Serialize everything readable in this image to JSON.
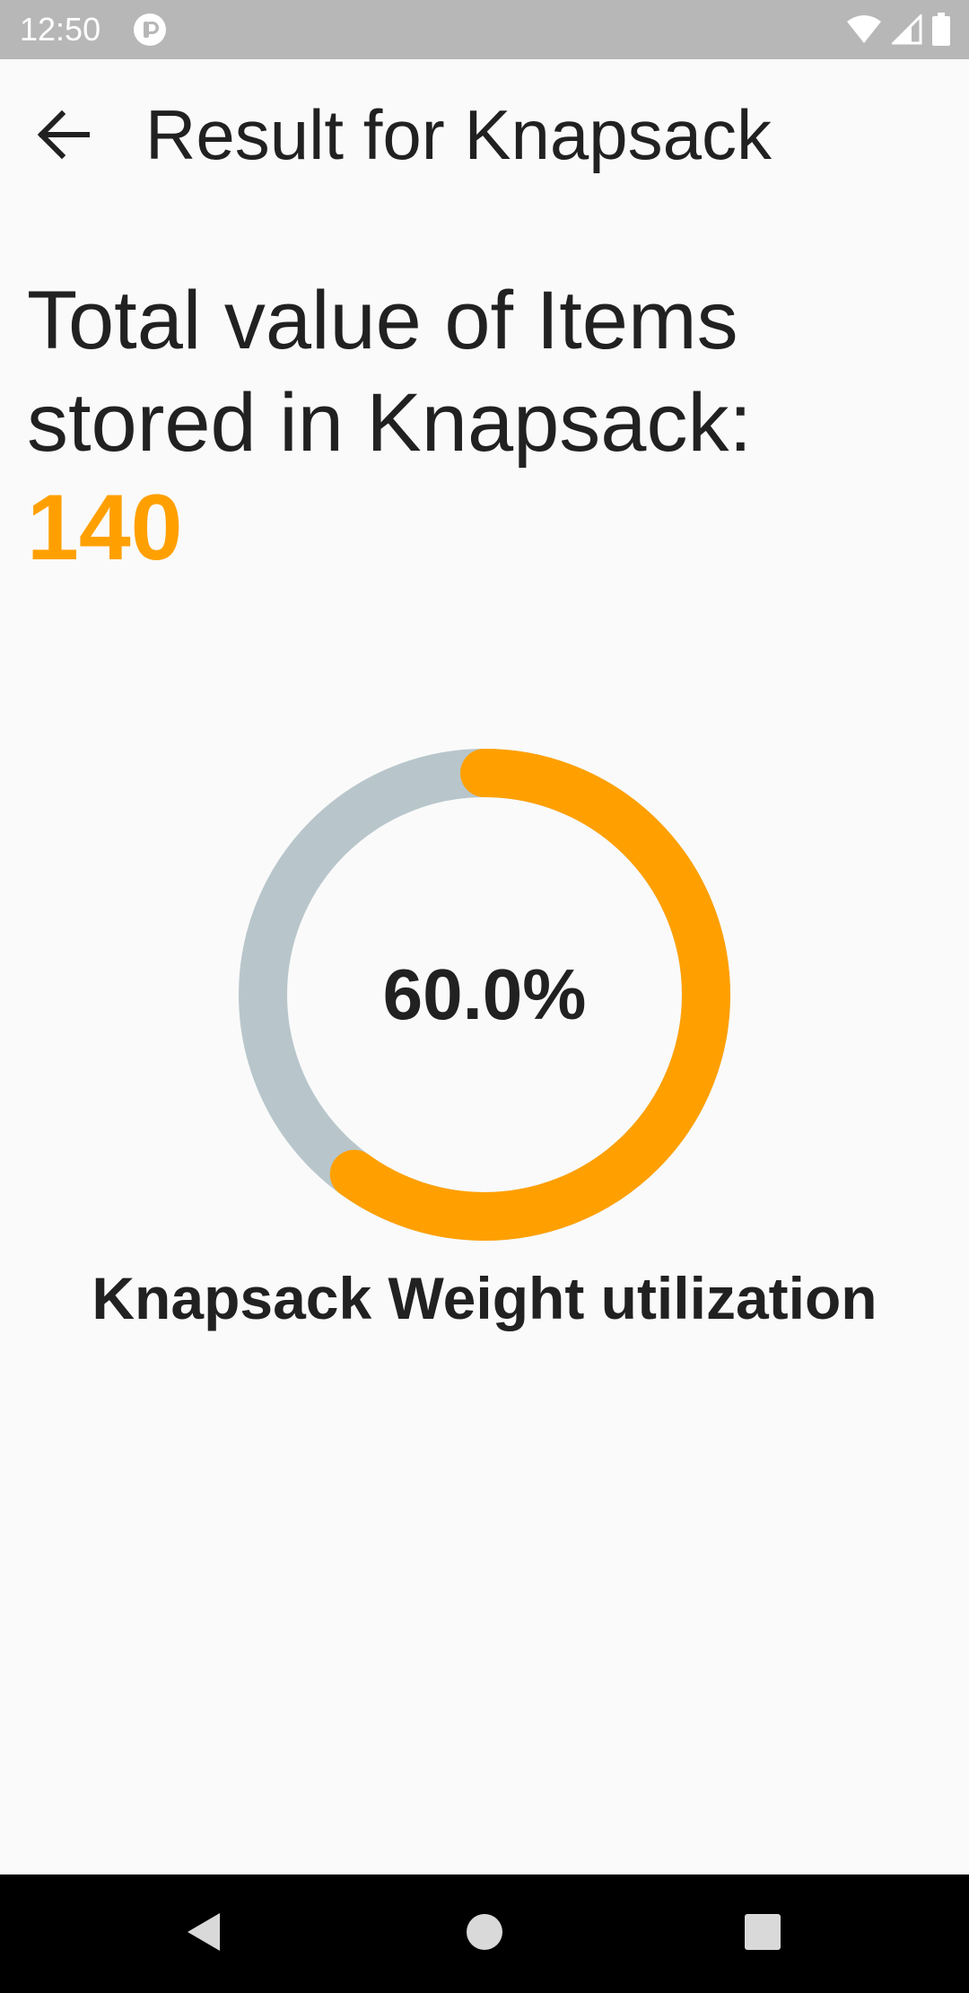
{
  "status_bar": {
    "time": "12:50",
    "icons": [
      "app-notification-icon",
      "wifi-icon",
      "cell-signal-icon",
      "battery-icon"
    ]
  },
  "app_bar": {
    "title": "Result for Knapsack",
    "back_icon": "arrow-back-icon"
  },
  "result": {
    "heading": "Total value of Items stored in Knapsack:",
    "total_value": "140"
  },
  "gauge": {
    "label": "60.0%",
    "fraction": 0.6,
    "caption": "Knapsack Weight utilization"
  },
  "colors": {
    "accent": "#ffa000",
    "track": "#b8c6cb",
    "text": "#212121",
    "status_bar": "#b7b7b7",
    "nav_bar": "#000000"
  },
  "nav_bar": {
    "icons": [
      "nav-back-icon",
      "nav-home-icon",
      "nav-recents-icon"
    ]
  }
}
